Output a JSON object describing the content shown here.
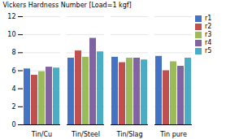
{
  "chart_data": {
    "type": "bar",
    "categories": [
      "Tin/Cu",
      "Tin/Steel",
      "Tin/Slag",
      "Tin pure"
    ],
    "series": [
      {
        "name": "r1",
        "color": "#4472C4",
        "values": [
          6.2,
          7.4,
          7.5,
          7.6
        ]
      },
      {
        "name": "r2",
        "color": "#C0504D",
        "values": [
          5.5,
          8.2,
          6.9,
          6.0
        ]
      },
      {
        "name": "r3",
        "color": "#9BBB59",
        "values": [
          5.9,
          7.5,
          7.4,
          7.0
        ]
      },
      {
        "name": "r4",
        "color": "#8064A2",
        "values": [
          6.4,
          9.6,
          7.4,
          6.5
        ]
      },
      {
        "name": "r5",
        "color": "#4BACC6",
        "values": [
          6.3,
          8.1,
          7.2,
          7.4
        ]
      }
    ],
    "ylabel": "Vickers Hardness Number [Load=1 kgf]",
    "ylim": [
      0,
      12
    ],
    "yticks": [
      0,
      2,
      4,
      6,
      8,
      10,
      12
    ],
    "grid": true,
    "legend": "upper right"
  }
}
